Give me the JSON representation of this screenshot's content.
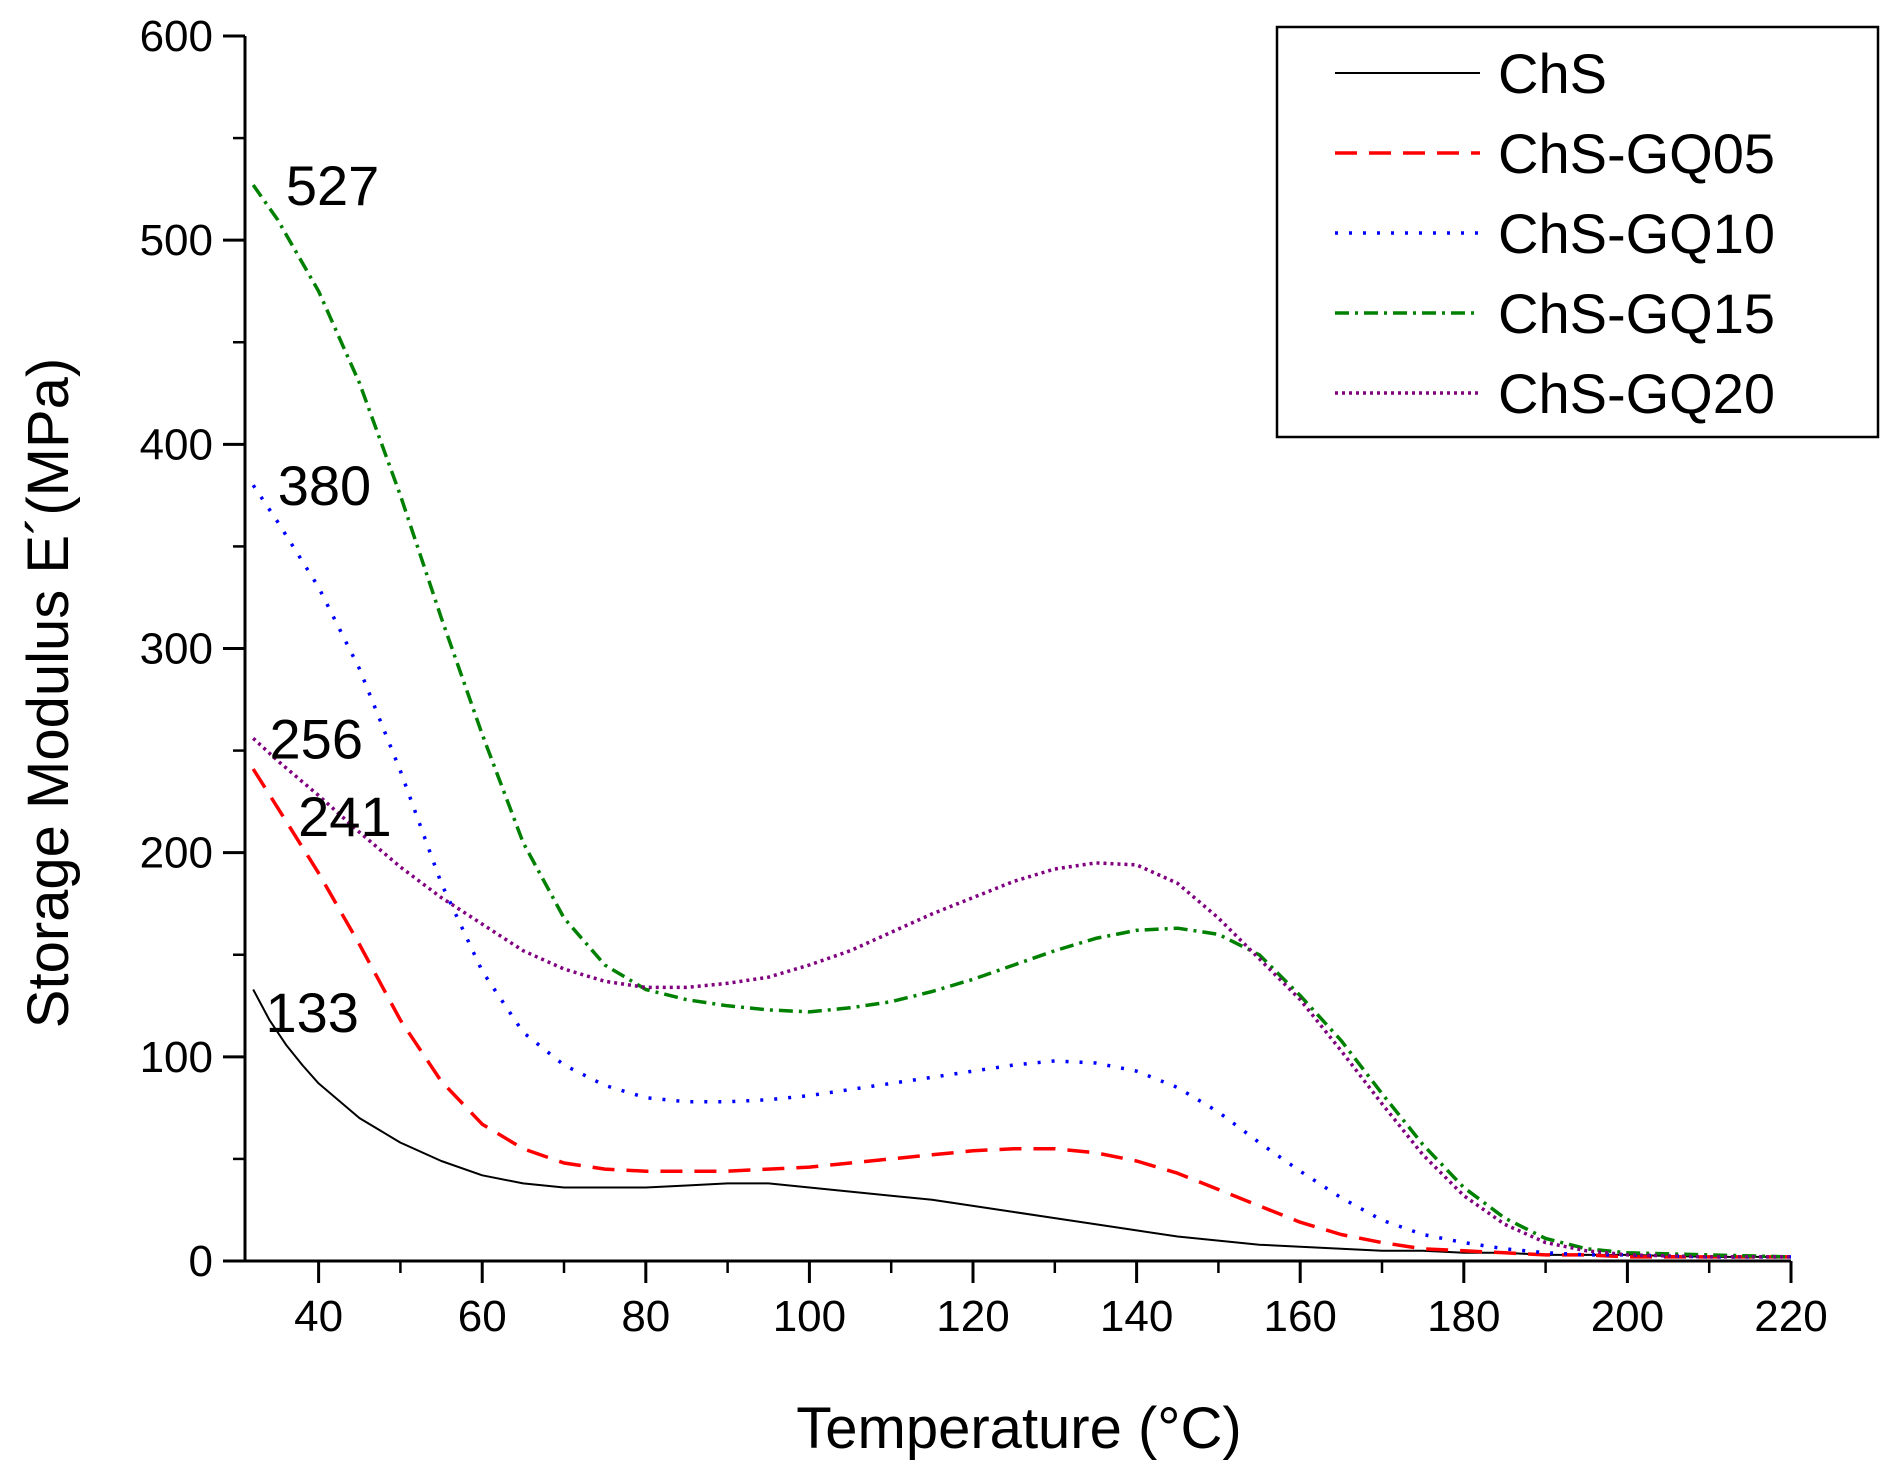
{
  "chart_data": {
    "type": "line",
    "xlabel": "Temperature (°C)",
    "ylabel": "Storage Modulus E´(MPa)",
    "xlim": [
      31,
      220
    ],
    "ylim": [
      0,
      600
    ],
    "xticks": [
      40,
      60,
      80,
      100,
      120,
      140,
      160,
      180,
      200,
      220
    ],
    "yticks": [
      0,
      100,
      200,
      300,
      400,
      500,
      600
    ],
    "grid": false,
    "legend_position": "top-right",
    "series": [
      {
        "name": "ChS",
        "color": "#000000",
        "dash": "solid",
        "x": [
          32,
          34,
          36,
          38,
          40,
          45,
          50,
          55,
          60,
          65,
          70,
          75,
          80,
          85,
          90,
          95,
          100,
          105,
          110,
          115,
          120,
          125,
          130,
          135,
          140,
          145,
          150,
          155,
          160,
          165,
          170,
          175,
          180,
          185,
          190,
          195,
          200,
          210,
          220
        ],
        "y": [
          133,
          118,
          106,
          96,
          87,
          70,
          58,
          49,
          42,
          38,
          36,
          36,
          36,
          37,
          38,
          38,
          36,
          34,
          32,
          30,
          27,
          24,
          21,
          18,
          15,
          12,
          10,
          8,
          7,
          6,
          5,
          5,
          4,
          4,
          3,
          3,
          3,
          2,
          2
        ]
      },
      {
        "name": "ChS-GQ05",
        "color": "#ff0000",
        "dash": "dashed",
        "x": [
          32,
          35,
          40,
          45,
          50,
          55,
          60,
          65,
          70,
          75,
          80,
          85,
          90,
          95,
          100,
          105,
          110,
          115,
          120,
          125,
          130,
          135,
          140,
          145,
          150,
          155,
          160,
          165,
          170,
          175,
          180,
          185,
          190,
          195,
          200,
          210,
          220
        ],
        "y": [
          241,
          222,
          190,
          155,
          118,
          88,
          67,
          55,
          48,
          45,
          44,
          44,
          44,
          45,
          46,
          48,
          50,
          52,
          54,
          55,
          55,
          53,
          49,
          43,
          35,
          27,
          19,
          13,
          9,
          6,
          5,
          4,
          3,
          3,
          2,
          2,
          2
        ]
      },
      {
        "name": "ChS-GQ10",
        "color": "#0000ff",
        "dash": "dotted",
        "x": [
          32,
          35,
          40,
          45,
          50,
          55,
          60,
          65,
          70,
          75,
          80,
          85,
          90,
          95,
          100,
          105,
          110,
          115,
          120,
          125,
          130,
          135,
          140,
          145,
          150,
          155,
          160,
          165,
          170,
          175,
          180,
          185,
          190,
          195,
          200,
          210,
          220
        ],
        "y": [
          380,
          362,
          330,
          290,
          240,
          185,
          142,
          112,
          96,
          86,
          80,
          78,
          78,
          79,
          81,
          84,
          87,
          90,
          93,
          96,
          98,
          97,
          93,
          85,
          73,
          58,
          44,
          31,
          20,
          13,
          9,
          6,
          4,
          3,
          3,
          2,
          2
        ]
      },
      {
        "name": "ChS-GQ15",
        "color": "#008000",
        "dash": "dashdot",
        "x": [
          32,
          35,
          40,
          45,
          50,
          55,
          60,
          65,
          70,
          75,
          80,
          85,
          90,
          95,
          100,
          105,
          110,
          115,
          120,
          125,
          130,
          135,
          140,
          145,
          150,
          155,
          160,
          165,
          170,
          175,
          180,
          185,
          190,
          195,
          200,
          210,
          220
        ],
        "y": [
          527,
          510,
          475,
          430,
          375,
          315,
          258,
          205,
          168,
          145,
          133,
          128,
          125,
          123,
          122,
          124,
          127,
          132,
          138,
          145,
          152,
          158,
          162,
          163,
          160,
          150,
          130,
          108,
          82,
          57,
          36,
          21,
          11,
          6,
          4,
          3,
          2
        ]
      },
      {
        "name": "ChS-GQ20",
        "color": "#800080",
        "dash": "dotted-dense",
        "x": [
          32,
          35,
          40,
          45,
          50,
          55,
          60,
          65,
          70,
          75,
          80,
          85,
          90,
          95,
          100,
          105,
          110,
          115,
          120,
          125,
          130,
          135,
          140,
          145,
          150,
          155,
          160,
          165,
          170,
          175,
          180,
          185,
          190,
          195,
          200,
          210,
          220
        ],
        "y": [
          256,
          245,
          228,
          210,
          193,
          178,
          165,
          152,
          143,
          137,
          134,
          134,
          136,
          139,
          145,
          152,
          161,
          170,
          178,
          186,
          192,
          195,
          194,
          185,
          168,
          148,
          128,
          103,
          77,
          52,
          32,
          18,
          9,
          5,
          3,
          2,
          2
        ]
      }
    ],
    "annotations": [
      {
        "text": "527",
        "x": 36,
        "y": 527
      },
      {
        "text": "380",
        "x": 35,
        "y": 380
      },
      {
        "text": "256",
        "x": 34,
        "y": 256
      },
      {
        "text": "241",
        "x": 37.5,
        "y": 218
      },
      {
        "text": "133",
        "x": 33.5,
        "y": 122
      }
    ]
  }
}
